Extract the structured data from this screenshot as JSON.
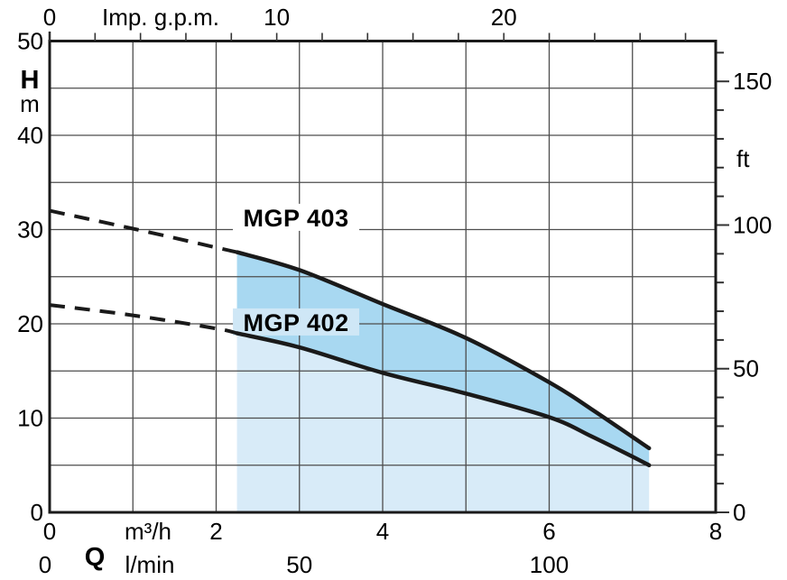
{
  "chart_data": {
    "type": "line",
    "description": "Pump head-flow performance curves",
    "x_axis_bottom": {
      "flow_letter": "Q",
      "unit_m3h": "m³/h",
      "unit_lmin": "l/min",
      "m3h_range": [
        0,
        8
      ],
      "m3h_tick_labels": [
        0,
        2,
        4,
        6,
        8
      ],
      "m3h_grid_step": 1,
      "lmin_tick_labels": [
        0,
        50,
        100
      ]
    },
    "x_axis_top": {
      "label": "Imp. g.p.m.",
      "ticks_labeled": [
        0,
        10,
        20
      ],
      "tick_step": 2,
      "tick_max": 28,
      "m3h_per_impgpm": 0.2727654
    },
    "y_axis_left": {
      "label": "H",
      "unit": "m",
      "range": [
        0,
        50
      ],
      "tick_labels": [
        50,
        40,
        30,
        20,
        10,
        0
      ],
      "grid_step": 5
    },
    "y_axis_right": {
      "unit": "ft",
      "ticks_labeled": [
        150,
        100,
        50,
        0
      ],
      "tick_step": 10,
      "tick_max": 160,
      "m_per_ft": 0.3048
    },
    "series": [
      {
        "name": "MGP 403",
        "dashed_until_q": 2.25,
        "label_q": 2.96,
        "label_h": 31.3,
        "label_bg": "#ffffff",
        "points": [
          [
            0,
            32
          ],
          [
            1,
            30.1
          ],
          [
            2,
            28.1
          ],
          [
            2.25,
            27.6
          ],
          [
            3,
            25.7
          ],
          [
            4,
            22.1
          ],
          [
            5,
            18.5
          ],
          [
            6,
            13.8
          ],
          [
            6.5,
            11.0
          ],
          [
            7,
            8.0
          ],
          [
            7.2,
            6.8
          ]
        ]
      },
      {
        "name": "MGP 402",
        "dashed_until_q": 2.25,
        "label_q": 2.96,
        "label_h": 20.2,
        "label_bg": "#cfe7f6",
        "points": [
          [
            0,
            22
          ],
          [
            1,
            20.9
          ],
          [
            2,
            19.5
          ],
          [
            2.25,
            19.0
          ],
          [
            3,
            17.5
          ],
          [
            4,
            14.8
          ],
          [
            5,
            12.6
          ],
          [
            6,
            10.1
          ],
          [
            6.5,
            8.1
          ],
          [
            7,
            5.9
          ],
          [
            7.2,
            5.0
          ]
        ]
      }
    ],
    "shading": {
      "q_start": 2.25,
      "q_end": 7.2,
      "between_curves_color": "#a8d8f1",
      "below_lower_color": "#d8ebf8"
    },
    "colors": {
      "curve": "#1a1a1a",
      "grid": "#4d4d4d",
      "tick": "#333333",
      "border": "#1a1a1a",
      "background": "#ffffff"
    }
  }
}
